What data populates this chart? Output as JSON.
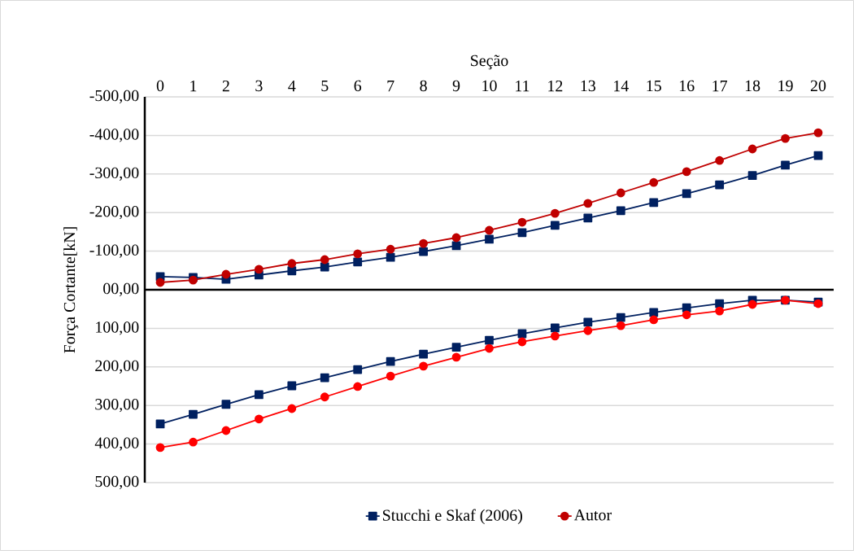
{
  "chart_data": {
    "type": "line",
    "xlabel": "Seção",
    "ylabel": "Força Cortante[kN]",
    "categories": [
      "0",
      "1",
      "2",
      "3",
      "4",
      "5",
      "6",
      "7",
      "8",
      "9",
      "10",
      "11",
      "12",
      "13",
      "14",
      "15",
      "16",
      "17",
      "18",
      "19",
      "20"
    ],
    "ylim": [
      500,
      -500
    ],
    "yticks": [
      {
        "value": -500,
        "label": "-500,00"
      },
      {
        "value": -400,
        "label": "-400,00"
      },
      {
        "value": -300,
        "label": "-300,00"
      },
      {
        "value": -200,
        "label": "-200,00"
      },
      {
        "value": -100,
        "label": "-100,00"
      },
      {
        "value": 0,
        "label": "00,00"
      },
      {
        "value": 100,
        "label": "100,00"
      },
      {
        "value": 200,
        "label": "200,00"
      },
      {
        "value": 300,
        "label": "300,00"
      },
      {
        "value": 400,
        "label": "400,00"
      },
      {
        "value": 500,
        "label": "500,00"
      }
    ],
    "grid": "y",
    "legend": "bottom",
    "line_style": "solid",
    "series": [
      {
        "name": "Stucchi e Skaf (2006)",
        "color": "#002060",
        "marker": "square",
        "values": [
          -34,
          -32,
          -27,
          -38,
          -49,
          -59,
          -72,
          -84,
          -99,
          -114,
          -131,
          -148,
          -167,
          -186,
          -205,
          -226,
          -249,
          -272,
          -296,
          -323,
          -348
        ]
      },
      {
        "name": "Autor",
        "color": "#c00000",
        "marker": "circle",
        "values": [
          -19,
          -25,
          -40,
          -53,
          -68,
          -78,
          -93,
          -105,
          -120,
          -135,
          -154,
          -175,
          -198,
          -224,
          -251,
          -278,
          -306,
          -335,
          -365,
          -392,
          -407
        ]
      },
      {
        "color": "#002060",
        "marker": "square",
        "values": [
          348,
          323,
          297,
          272,
          249,
          228,
          207,
          186,
          167,
          149,
          131,
          114,
          99,
          84,
          72,
          59,
          47,
          36,
          27,
          27,
          32
        ]
      },
      {
        "color": "#ff0000",
        "marker": "circle",
        "values": [
          409,
          395,
          365,
          335,
          308,
          278,
          251,
          224,
          198,
          175,
          152,
          135,
          120,
          106,
          93,
          78,
          65,
          55,
          38,
          27,
          36
        ]
      }
    ]
  }
}
